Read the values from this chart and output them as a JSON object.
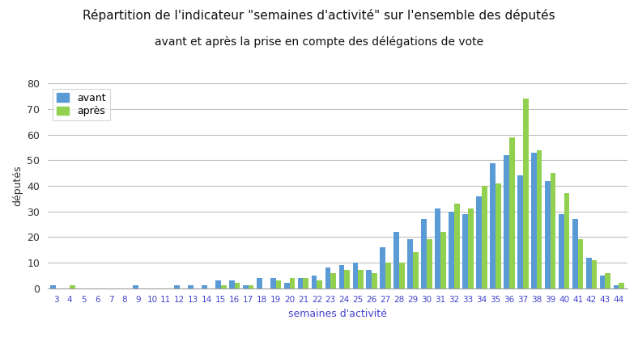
{
  "title": "Répartition de l'indicateur \"semaines d'activité\" sur l'ensemble des députés",
  "subtitle": "avant et après la prise en compte des délégations de vote",
  "xlabel": "semaines d'activité",
  "ylabel": "députés",
  "color_avant": "#5b9bd5",
  "color_apres": "#92d050",
  "categories": [
    3,
    4,
    5,
    6,
    7,
    8,
    9,
    10,
    11,
    12,
    13,
    14,
    15,
    16,
    17,
    18,
    19,
    20,
    21,
    22,
    23,
    24,
    25,
    26,
    27,
    28,
    29,
    30,
    31,
    32,
    33,
    34,
    35,
    36,
    37,
    38,
    39,
    40,
    41,
    42,
    43,
    44
  ],
  "avant": [
    1,
    0,
    0,
    0,
    0,
    0,
    1,
    0,
    0,
    1,
    1,
    1,
    3,
    3,
    1,
    4,
    4,
    2,
    4,
    5,
    8,
    9,
    10,
    7,
    16,
    22,
    19,
    27,
    31,
    30,
    29,
    36,
    49,
    52,
    44,
    53,
    42,
    29,
    27,
    12,
    5,
    1
  ],
  "apres": [
    0,
    1,
    0,
    0,
    0,
    0,
    0,
    0,
    0,
    0,
    0,
    0,
    1,
    2,
    1,
    0,
    3,
    4,
    4,
    3,
    6,
    7,
    7,
    6,
    10,
    10,
    14,
    19,
    22,
    33,
    31,
    40,
    41,
    59,
    74,
    54,
    45,
    37,
    19,
    11,
    6,
    2
  ],
  "ylim": [
    0,
    80
  ],
  "yticks": [
    0,
    10,
    20,
    30,
    40,
    50,
    60,
    70,
    80
  ],
  "background_color": "#ffffff",
  "grid_color": "#c0c0c0",
  "legend_labels": [
    "avant",
    "après"
  ],
  "title_fontsize": 11,
  "subtitle_fontsize": 10,
  "xlabel_fontsize": 9,
  "ylabel_fontsize": 9,
  "xtick_fontsize": 7.5,
  "ytick_fontsize": 9,
  "xlabel_color": "#4444cc",
  "xtick_color": "#4444cc",
  "ylabel_color": "#333333",
  "ytick_color": "#333333",
  "title_color": "#111111",
  "bar_width": 0.4
}
